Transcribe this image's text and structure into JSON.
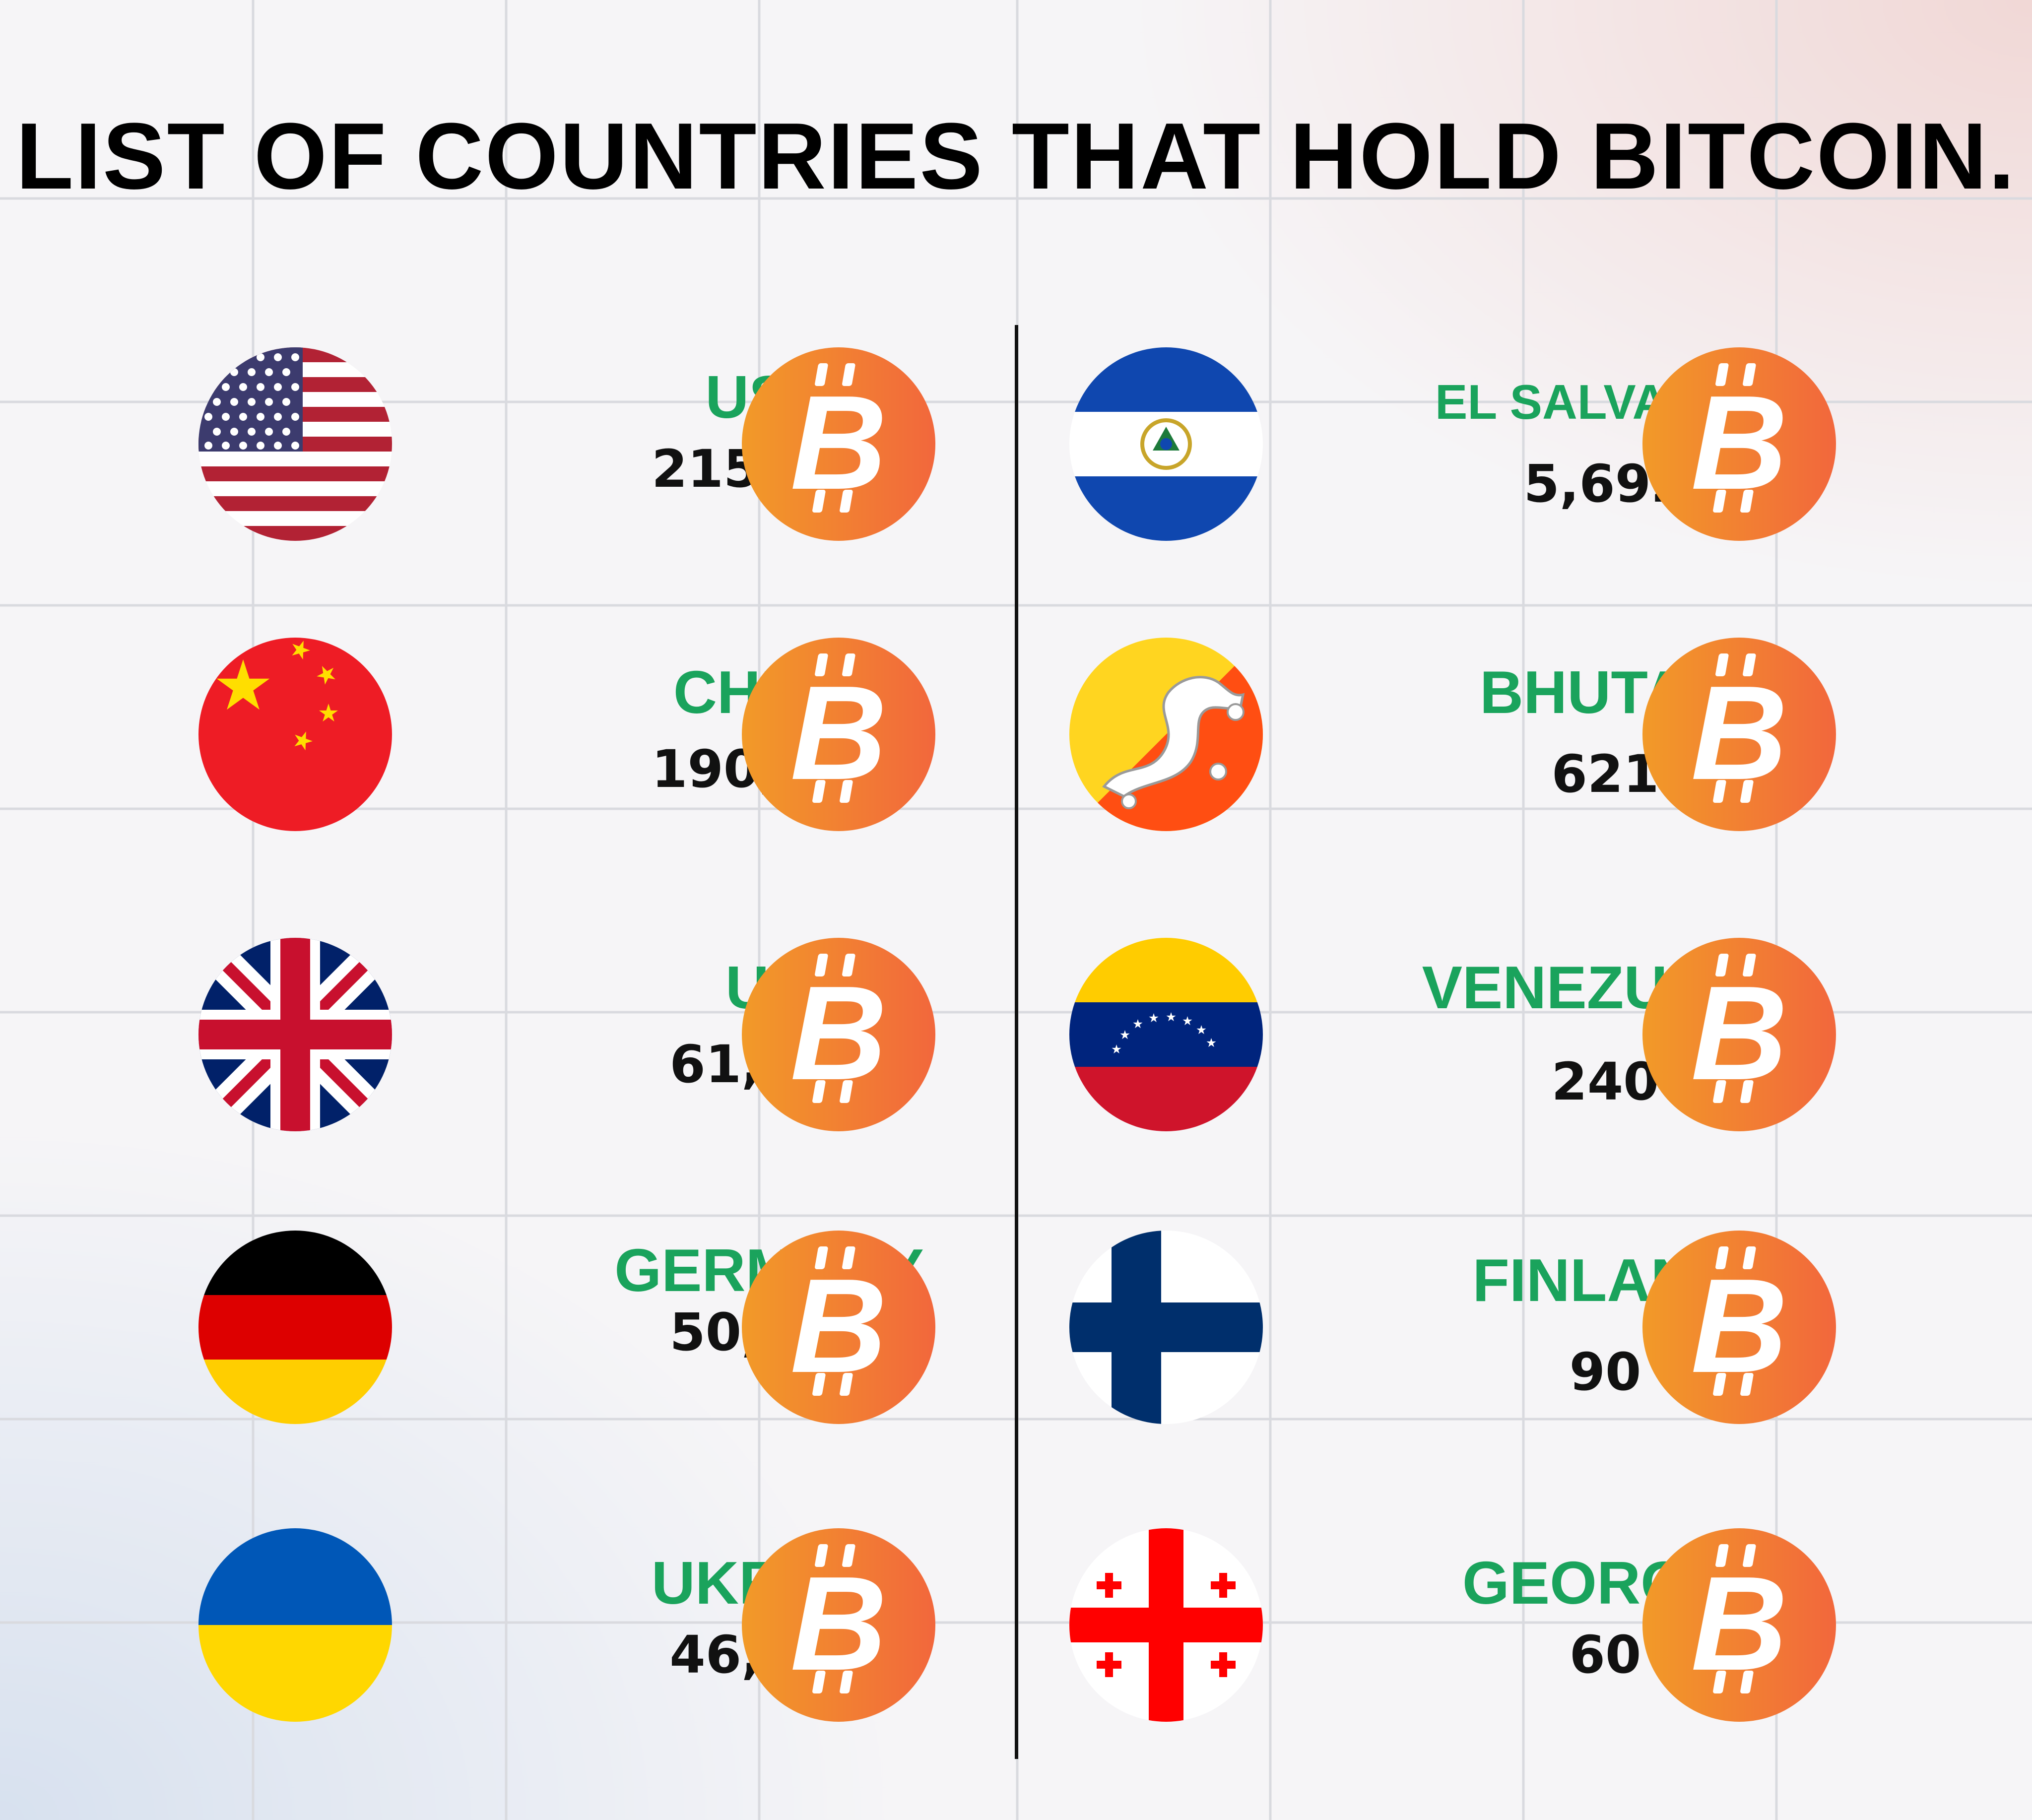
{
  "title": "LIST OF COUNTRIES THAT HOLD BITCOIN.",
  "colors": {
    "country_name": "#1aa35c",
    "holding_value": "#111111",
    "coin_gradient": [
      "#f29a28",
      "#f2673c"
    ],
    "divider": "#111111"
  },
  "coin_icon": "bitcoin-icon",
  "left_column": [
    {
      "country": "USA",
      "btc": "215,000",
      "flag_icon": "usa-flag-icon"
    },
    {
      "country": "CHINA",
      "btc": "190,000",
      "flag_icon": "china-flag-icon"
    },
    {
      "country": "UK",
      "btc": "61,000",
      "flag_icon": "uk-flag-icon"
    },
    {
      "country": "GERMANY",
      "btc": "50,000",
      "flag_icon": "germany-flag-icon"
    },
    {
      "country": "UKRAIN",
      "btc": "46,351",
      "flag_icon": "ukraine-flag-icon"
    }
  ],
  "right_column": [
    {
      "country": "EL SALVADOR",
      "btc": "5,692",
      "flag_icon": "el-salvador-flag-icon"
    },
    {
      "country": "BHUTAN",
      "btc": "621",
      "flag_icon": "bhutan-flag-icon"
    },
    {
      "country": "VENEZUELA",
      "btc": "240",
      "flag_icon": "venezuela-flag-icon"
    },
    {
      "country": "FINLAND",
      "btc": "90",
      "flag_icon": "finland-flag-icon"
    },
    {
      "country": "GEORGIA",
      "btc": "60",
      "flag_icon": "georgia-flag-icon"
    }
  ]
}
